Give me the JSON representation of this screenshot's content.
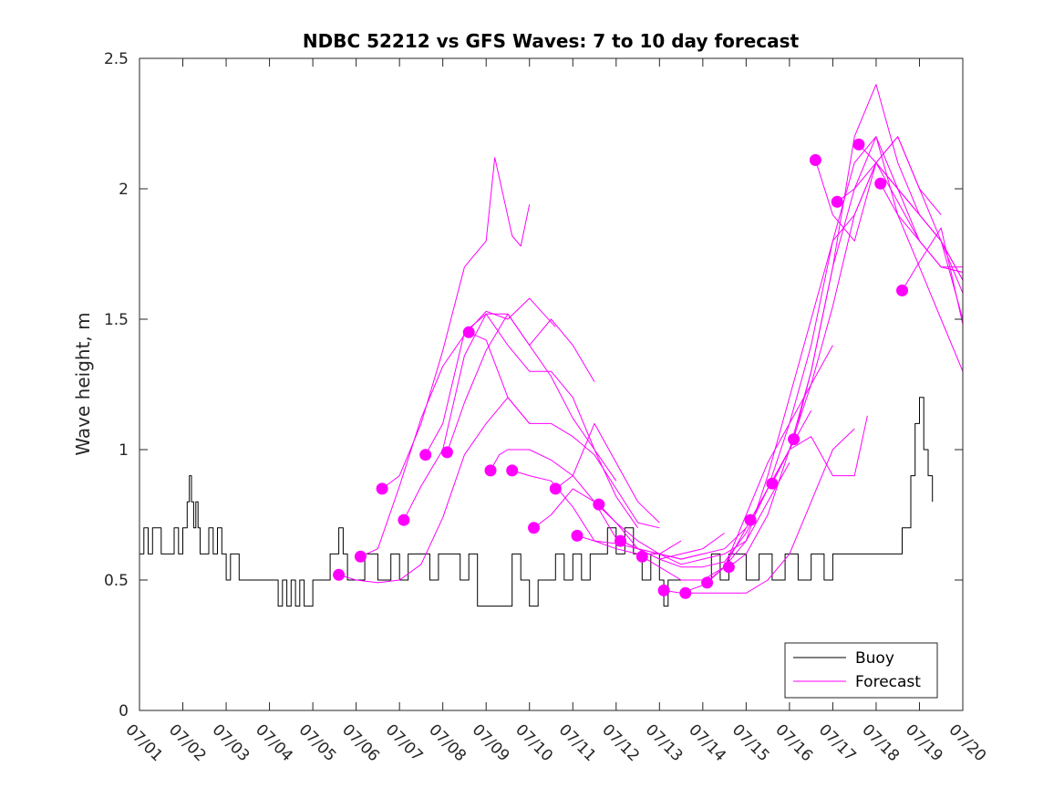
{
  "chart_data": {
    "type": "line",
    "title": "NDBC 52212 vs GFS Waves: 7 to 10 day forecast",
    "xlabel": "",
    "ylabel": "Wave height, m",
    "xlim": [
      "07/01",
      "07/20"
    ],
    "ylim": [
      0,
      2.5
    ],
    "x_tick_labels": [
      "07/01",
      "07/02",
      "07/03",
      "07/04",
      "07/05",
      "07/06",
      "07/07",
      "07/08",
      "07/09",
      "07/10",
      "07/11",
      "07/12",
      "07/13",
      "07/14",
      "07/15",
      "07/16",
      "07/17",
      "07/18",
      "07/19",
      "07/20"
    ],
    "y_tick_labels": [
      "0",
      "0.5",
      "1",
      "1.5",
      "2",
      "2.5"
    ],
    "y_ticks": [
      0,
      0.5,
      1,
      1.5,
      2,
      2.5
    ],
    "grid": false,
    "legend": {
      "placement": "bottom-right",
      "entries": [
        "Buoy",
        "Forecast"
      ]
    },
    "colors": {
      "buoy": "#000000",
      "forecast": "#ff00ff"
    },
    "series": [
      {
        "name": "Buoy",
        "x_day": [
          1.0,
          1.1,
          1.2,
          1.3,
          1.4,
          1.5,
          1.6,
          1.7,
          1.8,
          1.9,
          2.0,
          2.1,
          2.15,
          2.2,
          2.25,
          2.3,
          2.35,
          2.4,
          2.5,
          2.6,
          2.7,
          2.8,
          2.9,
          3.0,
          3.1,
          3.3,
          3.5,
          3.8,
          4.0,
          4.2,
          4.3,
          4.4,
          4.5,
          4.6,
          4.7,
          4.8,
          5.0,
          5.3,
          5.4,
          5.5,
          5.6,
          5.7,
          5.8,
          6.0,
          6.2,
          6.5,
          6.8,
          7.0,
          7.2,
          7.5,
          7.7,
          7.9,
          8.0,
          8.2,
          8.4,
          8.6,
          8.8,
          8.9,
          9.0,
          9.2,
          9.4,
          9.6,
          9.8,
          10.0,
          10.2,
          10.4,
          10.6,
          10.8,
          11.0,
          11.2,
          11.4,
          11.6,
          11.8,
          12.0,
          12.2,
          12.4,
          12.6,
          12.8,
          13.0,
          13.1,
          13.2,
          13.5,
          13.8,
          14.0,
          14.2,
          14.4,
          14.6,
          14.8,
          15.0,
          15.3,
          15.6,
          15.9,
          16.2,
          16.5,
          16.8,
          17.0,
          17.2,
          17.5,
          17.8,
          18.0,
          18.3,
          18.6,
          18.8,
          18.9,
          19.0,
          19.1,
          19.2,
          19.3
        ],
        "values": [
          0.6,
          0.7,
          0.6,
          0.7,
          0.7,
          0.6,
          0.6,
          0.6,
          0.7,
          0.6,
          0.7,
          0.8,
          0.9,
          0.8,
          0.7,
          0.8,
          0.7,
          0.6,
          0.6,
          0.7,
          0.6,
          0.7,
          0.6,
          0.5,
          0.6,
          0.5,
          0.5,
          0.5,
          0.5,
          0.4,
          0.5,
          0.4,
          0.5,
          0.4,
          0.5,
          0.4,
          0.5,
          0.5,
          0.6,
          0.6,
          0.7,
          0.6,
          0.5,
          0.5,
          0.6,
          0.5,
          0.6,
          0.5,
          0.6,
          0.6,
          0.5,
          0.6,
          0.6,
          0.6,
          0.5,
          0.6,
          0.4,
          0.4,
          0.4,
          0.4,
          0.4,
          0.6,
          0.5,
          0.4,
          0.5,
          0.5,
          0.6,
          0.5,
          0.6,
          0.5,
          0.6,
          0.6,
          0.7,
          0.6,
          0.7,
          0.6,
          0.5,
          0.6,
          0.5,
          0.4,
          0.5,
          0.5,
          0.5,
          0.5,
          0.6,
          0.5,
          0.6,
          0.6,
          0.5,
          0.6,
          0.5,
          0.6,
          0.5,
          0.6,
          0.5,
          0.6,
          0.6,
          0.6,
          0.6,
          0.6,
          0.6,
          0.7,
          0.9,
          1.1,
          1.2,
          1.0,
          0.9,
          0.8
        ]
      },
      {
        "name": "Forecast",
        "x_day": [
          5.6,
          6.0,
          6.5,
          7.0,
          7.5,
          8.0,
          8.5,
          9.0,
          9.5,
          10.0
        ],
        "values": [
          0.52,
          0.5,
          0.49,
          0.5,
          0.56,
          0.74,
          0.98,
          1.1,
          1.2,
          1.1
        ]
      },
      {
        "name": "",
        "x_day": [
          6.1,
          6.5,
          7.0,
          7.5,
          8.0,
          8.5,
          9.0,
          9.5,
          10.0,
          10.6
        ],
        "values": [
          0.59,
          0.62,
          0.86,
          1.12,
          1.32,
          1.44,
          1.53,
          1.5,
          1.58,
          1.47
        ]
      },
      {
        "name": "",
        "x_day": [
          6.6,
          7.0,
          7.5,
          8.0,
          8.5,
          9.0,
          9.2,
          9.6,
          9.8,
          10.0
        ],
        "values": [
          0.85,
          0.9,
          1.1,
          1.38,
          1.7,
          1.8,
          2.12,
          1.82,
          1.78,
          1.94
        ]
      },
      {
        "name": "",
        "x_day": [
          7.1,
          7.5,
          8.0,
          8.5,
          9.0,
          9.5,
          10.0,
          10.5,
          11.0,
          11.5
        ],
        "values": [
          0.73,
          0.86,
          1.0,
          1.36,
          1.52,
          1.52,
          1.4,
          1.5,
          1.4,
          1.26
        ]
      },
      {
        "name": "",
        "x_day": [
          7.6,
          8.0,
          8.5,
          9.0,
          9.5,
          10.0,
          10.5,
          11.0,
          11.5,
          12.0
        ],
        "values": [
          0.98,
          1.1,
          1.45,
          1.52,
          1.4,
          1.3,
          1.3,
          1.2,
          1.0,
          0.88
        ]
      },
      {
        "name": "",
        "x_day": [
          8.1,
          8.5,
          9.0,
          9.5,
          10.0,
          10.5,
          11.0,
          11.5,
          12.0,
          12.5
        ],
        "values": [
          0.99,
          1.18,
          1.38,
          1.52,
          1.4,
          1.28,
          1.12,
          1.0,
          0.82,
          0.7
        ]
      },
      {
        "name": "",
        "x_day": [
          8.6,
          9.0,
          9.5,
          10.0,
          10.5,
          11.0,
          11.5,
          12.0,
          12.5,
          13.0
        ],
        "values": [
          1.45,
          1.42,
          1.2,
          1.1,
          1.1,
          1.05,
          0.98,
          0.85,
          0.72,
          0.7
        ]
      },
      {
        "name": "",
        "x_day": [
          9.1,
          9.3,
          9.5,
          10.0,
          10.5,
          11.0,
          11.5,
          12.0,
          12.5,
          13.0
        ],
        "values": [
          0.92,
          0.98,
          1.0,
          1.0,
          0.96,
          0.9,
          1.1,
          0.95,
          0.8,
          0.72
        ]
      },
      {
        "name": "",
        "x_day": [
          9.6,
          10.0,
          10.5,
          11.0,
          11.5,
          12.0,
          12.5,
          13.0,
          13.5
        ],
        "values": [
          0.92,
          0.9,
          0.88,
          0.78,
          0.65,
          0.62,
          0.6,
          0.6,
          0.65
        ]
      },
      {
        "name": "",
        "x_day": [
          10.1,
          10.5,
          11.0,
          11.5,
          12.0,
          12.5,
          13.0,
          13.5,
          14.0
        ],
        "values": [
          0.7,
          0.75,
          0.85,
          0.8,
          0.66,
          0.62,
          0.6,
          0.58,
          0.6
        ]
      },
      {
        "name": "",
        "x_day": [
          10.6,
          11.0,
          11.5,
          12.0,
          12.5,
          13.0,
          13.5,
          14.0,
          14.5
        ],
        "values": [
          0.85,
          0.9,
          0.8,
          0.72,
          0.62,
          0.58,
          0.6,
          0.62,
          0.68
        ]
      },
      {
        "name": "",
        "x_day": [
          11.1,
          11.5,
          12.0,
          12.5,
          13.0,
          13.5,
          14.0,
          14.5,
          15.0
        ],
        "values": [
          0.67,
          0.65,
          0.64,
          0.62,
          0.6,
          0.58,
          0.6,
          0.62,
          0.7
        ]
      },
      {
        "name": "",
        "x_day": [
          11.6,
          12.0,
          12.5,
          13.0,
          13.5,
          14.0,
          14.5,
          15.0,
          15.5,
          16.0
        ],
        "values": [
          0.79,
          0.72,
          0.65,
          0.6,
          0.56,
          0.58,
          0.6,
          0.65,
          0.8,
          0.95
        ]
      },
      {
        "name": "",
        "x_day": [
          12.1,
          12.5,
          13.0,
          13.5,
          14.0,
          14.5,
          15.0,
          15.5,
          16.0,
          16.5
        ],
        "values": [
          0.65,
          0.62,
          0.58,
          0.55,
          0.55,
          0.57,
          0.68,
          0.85,
          1.0,
          1.15
        ]
      },
      {
        "name": "",
        "x_day": [
          12.6,
          13.0,
          13.5,
          14.0,
          14.5,
          15.0,
          15.5,
          16.0,
          16.5,
          17.0
        ],
        "values": [
          0.59,
          0.55,
          0.5,
          0.5,
          0.55,
          0.75,
          0.95,
          1.1,
          1.25,
          1.4
        ]
      },
      {
        "name": "",
        "x_day": [
          13.1,
          13.5,
          14.0,
          14.5,
          15.0,
          15.5,
          16.0,
          16.5,
          17.0,
          17.5,
          17.8
        ],
        "values": [
          0.46,
          0.45,
          0.48,
          0.55,
          0.7,
          0.85,
          1.0,
          1.05,
          0.9,
          0.9,
          1.13
        ]
      },
      {
        "name": "",
        "x_day": [
          13.6,
          14.0,
          14.5,
          15.0,
          15.5,
          16.0,
          16.5,
          17.0,
          17.5
        ],
        "values": [
          0.45,
          0.45,
          0.45,
          0.45,
          0.5,
          0.6,
          0.8,
          1.0,
          1.08
        ]
      },
      {
        "name": "",
        "x_day": [
          14.1,
          14.5,
          15.0,
          15.5,
          16.0,
          16.5,
          17.0,
          17.5,
          18.0,
          18.5,
          19.0,
          19.5,
          20.0
        ],
        "values": [
          0.49,
          0.55,
          0.65,
          0.9,
          1.2,
          1.5,
          1.8,
          1.9,
          2.1,
          2.0,
          1.8,
          1.7,
          1.7
        ]
      },
      {
        "name": "",
        "x_day": [
          14.6,
          15.0,
          15.5,
          16.0,
          16.5,
          17.0,
          17.5,
          18.0,
          18.5,
          19.0,
          19.5,
          20.0
        ],
        "values": [
          0.55,
          0.6,
          0.75,
          1.0,
          1.3,
          1.7,
          2.0,
          2.2,
          2.0,
          1.9,
          1.8,
          1.65
        ]
      },
      {
        "name": "",
        "x_day": [
          15.1,
          15.5,
          16.0,
          16.5,
          17.0,
          17.5,
          18.0,
          18.5,
          19.0,
          19.5,
          20.0
        ],
        "values": [
          0.73,
          0.85,
          1.1,
          1.4,
          1.8,
          2.1,
          2.2,
          1.9,
          1.7,
          1.5,
          1.3
        ]
      },
      {
        "name": "",
        "x_day": [
          15.6,
          16.0,
          16.5,
          17.0,
          17.5,
          18.0,
          18.5,
          19.0,
          19.5,
          20.0
        ],
        "values": [
          0.87,
          1.0,
          1.25,
          1.55,
          1.9,
          2.1,
          2.2,
          2.0,
          1.8,
          1.6
        ]
      },
      {
        "name": "",
        "x_day": [
          16.1,
          16.5,
          17.0,
          17.5,
          18.0,
          18.5,
          19.0,
          19.5,
          20.0
        ],
        "values": [
          1.04,
          1.3,
          1.7,
          2.2,
          2.4,
          2.1,
          1.9,
          1.8,
          1.5
        ]
      },
      {
        "name": "",
        "x_day": [
          16.6,
          17.0,
          17.5,
          18.0,
          18.5,
          19.0,
          19.5
        ],
        "values": [
          2.11,
          1.9,
          1.8,
          2.1,
          2.2,
          2.0,
          1.9
        ]
      },
      {
        "name": "",
        "x_day": [
          17.1,
          17.5,
          18.0,
          18.5,
          19.0,
          19.5,
          20.0
        ],
        "values": [
          1.95,
          2.0,
          2.1,
          1.95,
          1.8,
          1.7,
          1.68
        ]
      },
      {
        "name": "",
        "x_day": [
          17.6,
          18.0,
          18.5,
          19.0,
          19.5,
          20.0
        ],
        "values": [
          2.17,
          2.1,
          2.0,
          1.9,
          1.8,
          1.65
        ]
      },
      {
        "name": "",
        "x_day": [
          18.1,
          18.5,
          19.0,
          19.5,
          20.0
        ],
        "values": [
          2.02,
          1.9,
          1.8,
          1.7,
          1.68
        ]
      },
      {
        "name": "",
        "x_day": [
          18.6,
          19.0,
          19.5,
          20.0
        ],
        "values": [
          1.61,
          1.72,
          1.85,
          1.48
        ]
      }
    ],
    "markers": {
      "x_day": [
        5.6,
        6.1,
        6.6,
        7.1,
        7.6,
        8.1,
        8.6,
        9.1,
        9.6,
        10.1,
        10.6,
        11.1,
        11.6,
        12.1,
        12.6,
        13.1,
        13.6,
        14.1,
        14.6,
        15.1,
        15.6,
        16.1,
        16.6,
        17.1,
        17.6,
        18.1,
        18.6
      ],
      "values": [
        0.52,
        0.59,
        0.85,
        0.73,
        0.98,
        0.99,
        1.45,
        0.92,
        0.92,
        0.7,
        0.85,
        0.67,
        0.79,
        0.65,
        0.59,
        0.46,
        0.45,
        0.49,
        0.55,
        0.73,
        0.87,
        1.04,
        2.11,
        1.95,
        2.17,
        2.02,
        1.61
      ]
    }
  }
}
